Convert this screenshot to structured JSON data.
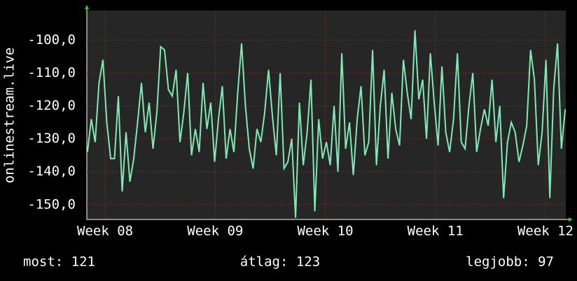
{
  "chart_data": {
    "type": "line",
    "y_label": "onlinestream.live",
    "x": [
      7.84,
      7.875,
      7.91,
      7.945,
      7.98,
      8.015,
      8.05,
      8.085,
      8.12,
      8.155,
      8.19,
      8.225,
      8.26,
      8.295,
      8.33,
      8.365,
      8.4,
      8.435,
      8.47,
      8.505,
      8.54,
      8.575,
      8.61,
      8.645,
      8.68,
      8.715,
      8.75,
      8.785,
      8.82,
      8.855,
      8.89,
      8.925,
      8.96,
      8.995,
      9.03,
      9.065,
      9.1,
      9.135,
      9.17,
      9.205,
      9.24,
      9.275,
      9.31,
      9.345,
      9.38,
      9.415,
      9.45,
      9.485,
      9.52,
      9.555,
      9.59,
      9.625,
      9.66,
      9.695,
      9.73,
      9.765,
      9.8,
      9.835,
      9.87,
      9.905,
      9.94,
      9.975,
      10.01,
      10.045,
      10.08,
      10.115,
      10.15,
      10.185,
      10.22,
      10.255,
      10.29,
      10.325,
      10.36,
      10.395,
      10.43,
      10.465,
      10.5,
      10.535,
      10.57,
      10.605,
      10.64,
      10.675,
      10.71,
      10.745,
      10.78,
      10.815,
      10.85,
      10.885,
      10.92,
      10.955,
      10.99,
      11.025,
      11.06,
      11.095,
      11.13,
      11.165,
      11.2,
      11.235,
      11.27,
      11.305,
      11.34,
      11.375,
      11.41,
      11.445,
      11.48,
      11.515,
      11.55,
      11.585,
      11.62,
      11.655,
      11.69,
      11.725,
      11.76,
      11.795,
      11.83,
      11.865,
      11.9,
      11.935,
      11.97,
      12.005,
      12.04,
      12.075,
      12.11,
      12.145,
      12.18
    ],
    "series": [
      {
        "color": "#7fe9b5",
        "values": [
          -134,
          -124,
          -131,
          -113,
          -106,
          -125,
          -136,
          -136,
          -117,
          -146,
          -128,
          -143,
          -136,
          -125,
          -113,
          -128,
          -119,
          -133,
          -122,
          -102,
          -103,
          -115,
          -117,
          -109,
          -131,
          -122,
          -110,
          -135,
          -127,
          -134,
          -113,
          -127,
          -119,
          -137,
          -124,
          -114,
          -136,
          -127,
          -134,
          -116,
          -101,
          -120,
          -133,
          -139,
          -127,
          -131,
          -122,
          -109,
          -123,
          -135,
          -110,
          -139,
          -137,
          -130,
          -154,
          -119,
          -138,
          -128,
          -112,
          -152,
          -124,
          -136,
          -131,
          -138,
          -120,
          -140,
          -104,
          -133,
          -125,
          -141,
          -124,
          -114,
          -135,
          -131,
          -103,
          -138,
          -120,
          -109,
          -136,
          -116,
          -127,
          -132,
          -106,
          -116,
          -124,
          -97,
          -118,
          -112,
          -130,
          -104,
          -119,
          -132,
          -108,
          -128,
          -134,
          -124,
          -104,
          -131,
          -133,
          -120,
          -110,
          -134,
          -127,
          -121,
          -126,
          -112,
          -131,
          -120,
          -148,
          -131,
          -125,
          -128,
          -137,
          -132,
          -126,
          -103,
          -112,
          -138,
          -128,
          -106,
          -148,
          -115,
          -101,
          -133,
          -121
        ]
      }
    ],
    "xlim": [
      7.834,
      12.185
    ],
    "xticks": [
      {
        "value": 8,
        "label": "Week 08"
      },
      {
        "value": 9,
        "label": "Week 09"
      },
      {
        "value": 10,
        "label": "Week 10"
      },
      {
        "value": 11,
        "label": "Week 11"
      },
      {
        "value": 12,
        "label": "Week 12"
      }
    ],
    "ylim": [
      -154.5,
      -91
    ],
    "yticks": [
      {
        "value": -150,
        "label": "-150,0"
      },
      {
        "value": -140,
        "label": "-140,0"
      },
      {
        "value": -130,
        "label": "-130,0"
      },
      {
        "value": -120,
        "label": "-120,0"
      },
      {
        "value": -110,
        "label": "-110,0"
      },
      {
        "value": -100,
        "label": "-100,0"
      }
    ],
    "grid": true,
    "footer": [
      "most: 121",
      "átlag: 123",
      "legjobb: 97"
    ]
  }
}
